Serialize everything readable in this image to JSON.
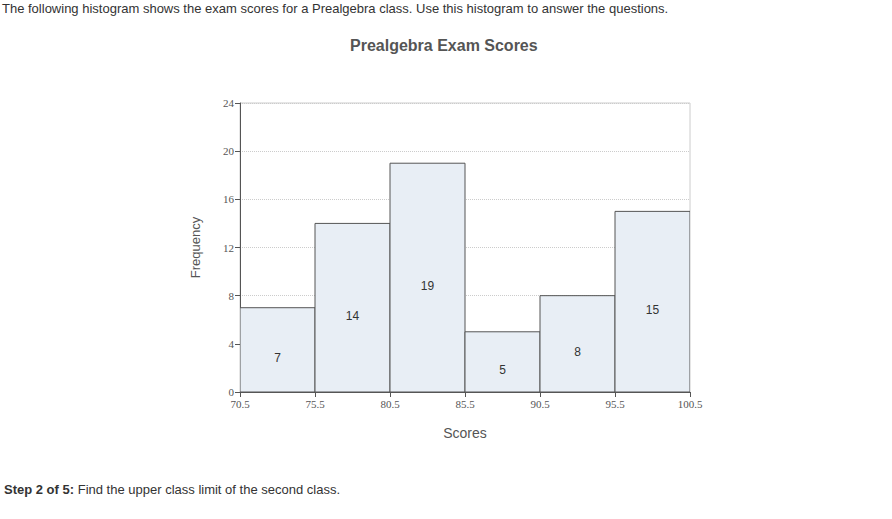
{
  "intro": "The following histogram shows the exam scores for a Prealgebra class. Use this histogram to answer the questions.",
  "question": {
    "step": "Step 2 of 5:",
    "text": "Find the upper class limit of the second class."
  },
  "chart_data": {
    "type": "histogram",
    "title": "Prealgebra Exam Scores",
    "x_label": "Scores",
    "y_label": "Frequency",
    "bins": [
      70.5,
      75.5,
      80.5,
      85.5,
      90.5,
      95.5,
      100.5
    ],
    "values": [
      7,
      14,
      19,
      5,
      8,
      15
    ],
    "color": "#e8eef5",
    "xlim": [
      70.5,
      100.5
    ],
    "xticks": [
      70.5,
      75.5,
      80.5,
      85.5,
      90.5,
      95.5,
      100.5
    ],
    "ylim": [
      0,
      24
    ],
    "yticks": [
      0,
      4,
      8,
      12,
      16,
      20,
      24
    ],
    "grid": true,
    "data_labels": true
  }
}
